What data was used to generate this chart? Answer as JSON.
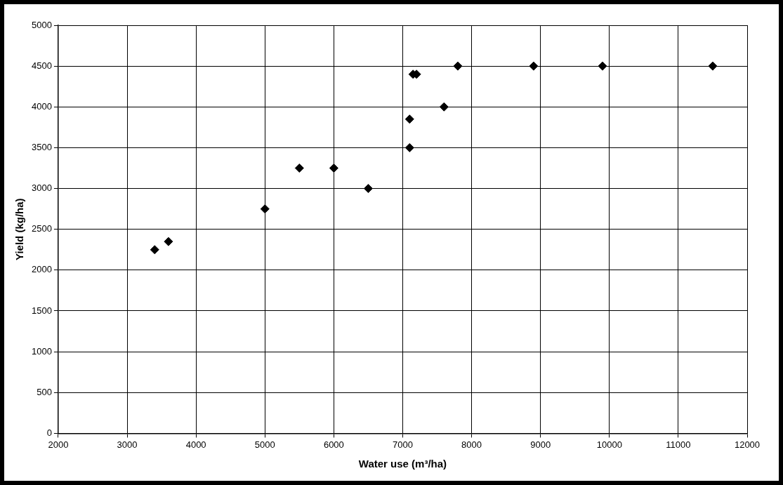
{
  "chart_data": {
    "type": "scatter",
    "xlabel": "Water use (m³/ha)",
    "ylabel": "Yield (kg/ha)",
    "x": [
      3400,
      3600,
      5000,
      5500,
      6000,
      6500,
      7100,
      7100,
      7150,
      7200,
      7600,
      7800,
      8900,
      9900,
      11500
    ],
    "values": [
      2250,
      2350,
      2750,
      3250,
      3250,
      3000,
      3850,
      3500,
      4400,
      4400,
      4000,
      4500,
      4500,
      4500,
      4500
    ],
    "color": "#000000",
    "marker": "diamond",
    "xlim": [
      2000,
      12000
    ],
    "xticks": [
      2000,
      3000,
      4000,
      5000,
      6000,
      7000,
      8000,
      9000,
      10000,
      11000,
      12000
    ],
    "ylim": [
      0,
      5000
    ],
    "yticks": [
      0,
      500,
      1000,
      1500,
      2000,
      2500,
      3000,
      3500,
      4000,
      4500,
      5000
    ],
    "grid": true,
    "legend": false
  }
}
